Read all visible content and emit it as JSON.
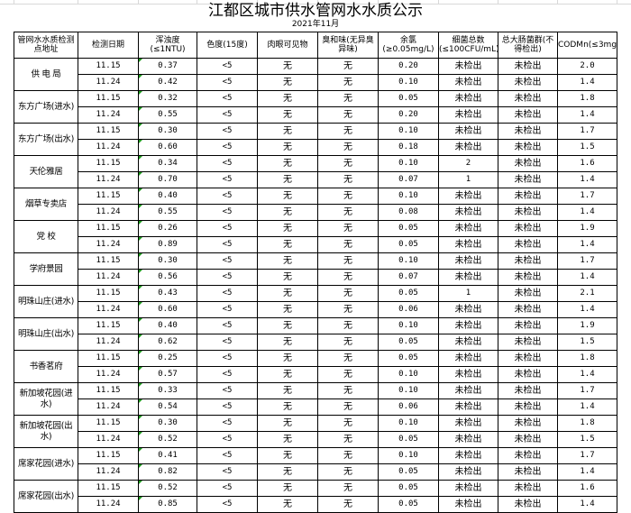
{
  "title": "江都区城市供水管网水水质公示",
  "subtitle": "2021年11月",
  "headers": [
    "管网水水质检测点地址",
    "检测日期",
    "浑浊度(≤1NTU)",
    "色度(15度)",
    "肉眼可见物",
    "臭和味(无异臭异味)",
    "余氯(≥0.05mg/L)",
    "细菌总数(≤100CFU/mL)",
    "总大肠菌群(不得检出)",
    "CODMn(≤3mg/L)"
  ],
  "sites": [
    {
      "name": "供 电 局",
      "rows": [
        [
          "11.15",
          "0.37",
          "<5",
          "无",
          "无",
          "0.20",
          "未检出",
          "未检出",
          "2.0"
        ],
        [
          "11.24",
          "0.42",
          "<5",
          "无",
          "无",
          "0.10",
          "未检出",
          "未检出",
          "1.4"
        ]
      ]
    },
    {
      "name": "东方广场(进水)",
      "rows": [
        [
          "11.15",
          "0.32",
          "<5",
          "无",
          "无",
          "0.05",
          "未检出",
          "未检出",
          "1.8"
        ],
        [
          "11.24",
          "0.55",
          "<5",
          "无",
          "无",
          "0.20",
          "未检出",
          "未检出",
          "1.4"
        ]
      ]
    },
    {
      "name": "东方广场(出水)",
      "rows": [
        [
          "11.15",
          "0.30",
          "<5",
          "无",
          "无",
          "0.10",
          "未检出",
          "未检出",
          "1.7"
        ],
        [
          "11.24",
          "0.60",
          "<5",
          "无",
          "无",
          "0.18",
          "未检出",
          "未检出",
          "1.5"
        ]
      ]
    },
    {
      "name": "天伦雅居",
      "rows": [
        [
          "11.15",
          "0.34",
          "<5",
          "无",
          "无",
          "0.10",
          "2",
          "未检出",
          "1.6"
        ],
        [
          "11.24",
          "0.70",
          "<5",
          "无",
          "无",
          "0.07",
          "1",
          "未检出",
          "1.4"
        ]
      ]
    },
    {
      "name": "烟草专卖店",
      "rows": [
        [
          "11.15",
          "0.40",
          "<5",
          "无",
          "无",
          "0.10",
          "未检出",
          "未检出",
          "1.7"
        ],
        [
          "11.24",
          "0.55",
          "<5",
          "无",
          "无",
          "0.08",
          "未检出",
          "未检出",
          "1.4"
        ]
      ]
    },
    {
      "name": "党  校",
      "rows": [
        [
          "11.15",
          "0.26",
          "<5",
          "无",
          "无",
          "0.05",
          "未检出",
          "未检出",
          "1.9"
        ],
        [
          "11.24",
          "0.89",
          "<5",
          "无",
          "无",
          "0.05",
          "未检出",
          "未检出",
          "1.4"
        ]
      ]
    },
    {
      "name": "学府景园",
      "rows": [
        [
          "11.15",
          "0.30",
          "<5",
          "无",
          "无",
          "0.10",
          "未检出",
          "未检出",
          "1.7"
        ],
        [
          "11.24",
          "0.56",
          "<5",
          "无",
          "无",
          "0.07",
          "未检出",
          "未检出",
          "1.4"
        ]
      ]
    },
    {
      "name": "明珠山庄(进水)",
      "rows": [
        [
          "11.15",
          "0.43",
          "<5",
          "无",
          "无",
          "0.05",
          "1",
          "未检出",
          "2.1"
        ],
        [
          "11.24",
          "0.60",
          "<5",
          "无",
          "无",
          "0.06",
          "未检出",
          "未检出",
          "1.4"
        ]
      ]
    },
    {
      "name": "明珠山庄(出水)",
      "rows": [
        [
          "11.15",
          "0.40",
          "<5",
          "无",
          "无",
          "0.10",
          "未检出",
          "未检出",
          "1.9"
        ],
        [
          "11.24",
          "0.62",
          "<5",
          "无",
          "无",
          "0.05",
          "未检出",
          "未检出",
          "1.5"
        ]
      ]
    },
    {
      "name": "书香茗府",
      "rows": [
        [
          "11.15",
          "0.25",
          "<5",
          "无",
          "无",
          "0.05",
          "未检出",
          "未检出",
          "1.8"
        ],
        [
          "11.24",
          "0.57",
          "<5",
          "无",
          "无",
          "0.10",
          "未检出",
          "未检出",
          "1.4"
        ]
      ]
    },
    {
      "name": "新加坡花园(进水)",
      "rows": [
        [
          "11.15",
          "0.33",
          "<5",
          "无",
          "无",
          "0.10",
          "未检出",
          "未检出",
          "1.7"
        ],
        [
          "11.24",
          "0.54",
          "<5",
          "无",
          "无",
          "0.06",
          "未检出",
          "未检出",
          "1.4"
        ]
      ]
    },
    {
      "name": "新加坡花园(出水)",
      "rows": [
        [
          "11.15",
          "0.30",
          "<5",
          "无",
          "无",
          "0.10",
          "未检出",
          "未检出",
          "1.8"
        ],
        [
          "11.24",
          "0.52",
          "<5",
          "无",
          "无",
          "0.05",
          "未检出",
          "未检出",
          "1.5"
        ]
      ]
    },
    {
      "name": "席家花园(进水)",
      "rows": [
        [
          "11.15",
          "0.41",
          "<5",
          "无",
          "无",
          "0.10",
          "未检出",
          "未检出",
          "1.7"
        ],
        [
          "11.24",
          "0.82",
          "<5",
          "无",
          "无",
          "0.05",
          "未检出",
          "未检出",
          "1.4"
        ]
      ]
    },
    {
      "name": "席家花园(出水)",
      "rows": [
        [
          "11.15",
          "0.52",
          "<5",
          "无",
          "无",
          "0.05",
          "未检出",
          "未检出",
          "1.6"
        ],
        [
          "11.24",
          "0.85",
          "<5",
          "无",
          "无",
          "0.05",
          "未检出",
          "未检出",
          "1.4"
        ]
      ]
    }
  ]
}
